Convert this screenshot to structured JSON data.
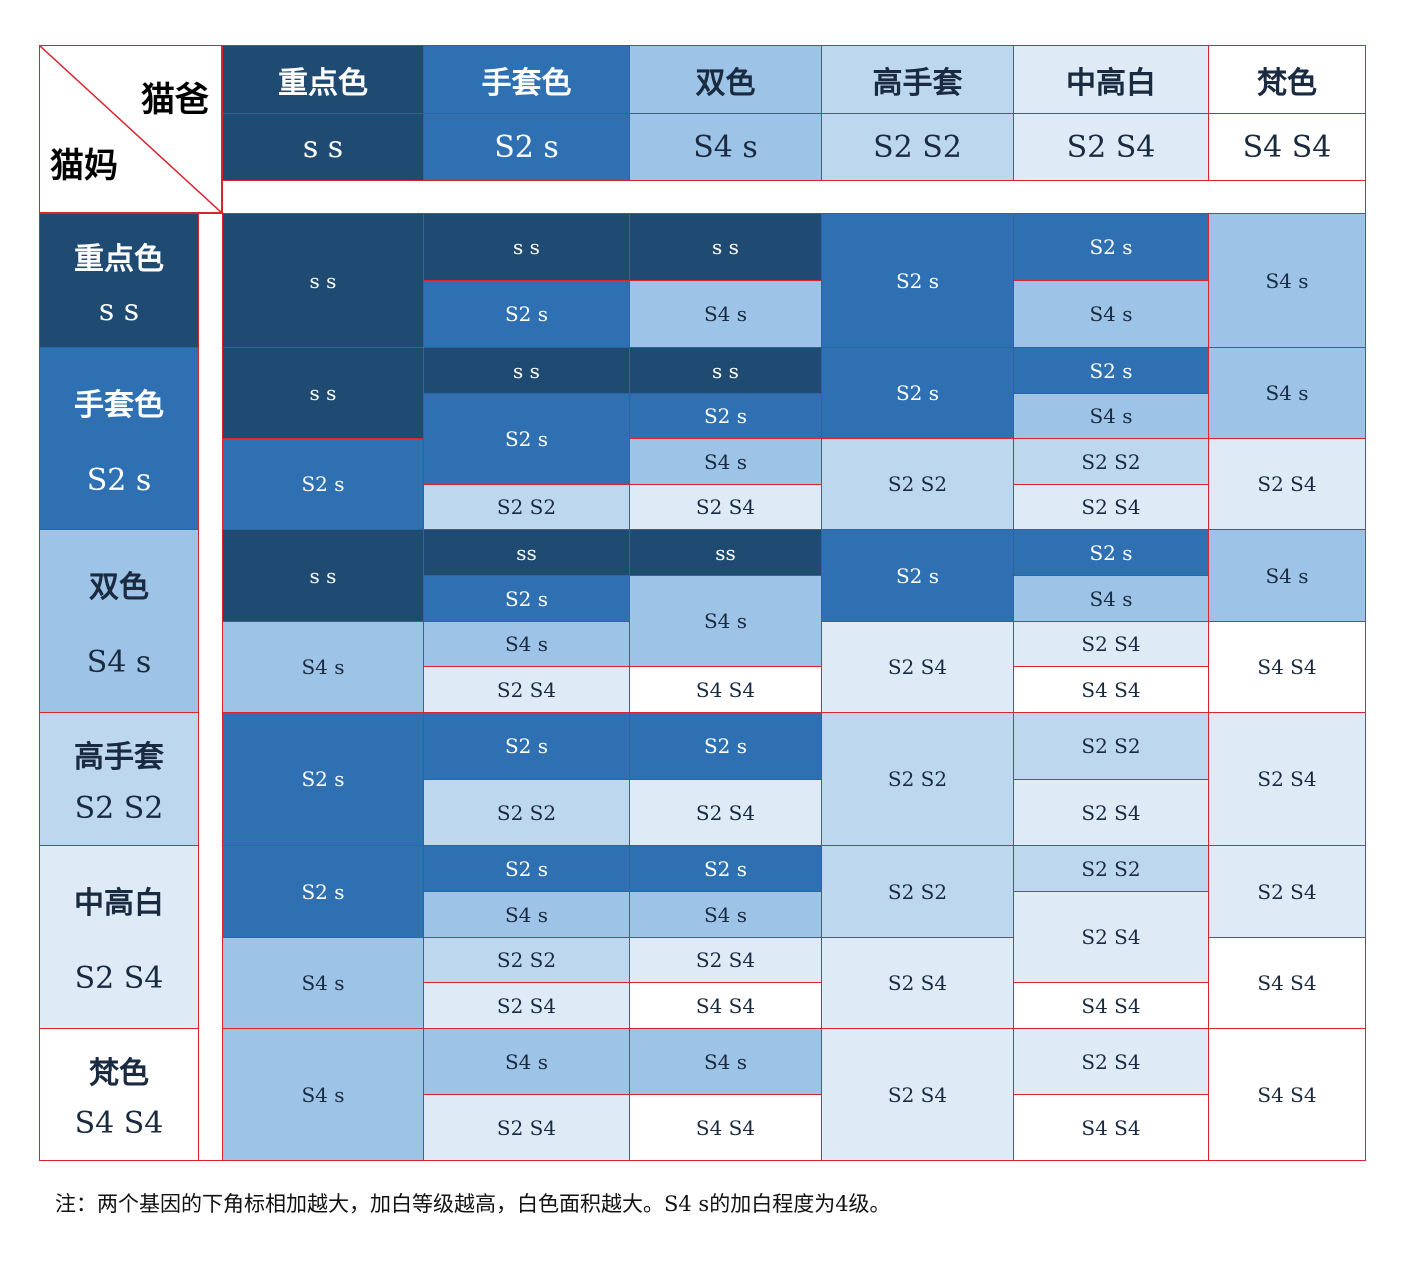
{
  "colors": {
    "ss": "#1f4b73",
    "S2s": "#2e70b2",
    "S4s": "#9dc3e6",
    "S2S2": "#bdd7ee",
    "S2S4": "#deebf7",
    "S4S4": "#ffffff",
    "border": "#d9232d",
    "dark_text": "#ffffff",
    "light_text": "#1a2a40"
  },
  "corner": {
    "dad_label": "猫爸",
    "mom_label": "猫妈"
  },
  "dad_columns": [
    {
      "name": "重点色",
      "genotype": "s s",
      "key": "ss"
    },
    {
      "name": "手套色",
      "genotype": "S2 s",
      "key": "S2s"
    },
    {
      "name": "双色",
      "genotype": "S4 s",
      "key": "S4s"
    },
    {
      "name": "高手套",
      "genotype": "S2 S2",
      "key": "S2S2"
    },
    {
      "name": "中高白",
      "genotype": "S2 S4",
      "key": "S2S4"
    },
    {
      "name": "梵色",
      "genotype": "S4 S4",
      "key": "S4S4"
    }
  ],
  "mom_rows": [
    {
      "name": "重点色",
      "genotype": "s s",
      "key": "ss"
    },
    {
      "name": "手套色",
      "genotype": "S2 s",
      "key": "S2s"
    },
    {
      "name": "双色",
      "genotype": "S4 s",
      "key": "S4s"
    },
    {
      "name": "高手套",
      "genotype": "S2 S2",
      "key": "S2S2"
    },
    {
      "name": "中高白",
      "genotype": "S2 S4",
      "key": "S2S4"
    },
    {
      "name": "梵色",
      "genotype": "S4 S4",
      "key": "S4S4"
    }
  ],
  "offspring": [
    {
      "row": 0,
      "col": 0,
      "part": [
        0,
        1
      ],
      "text": "s s",
      "key": "ss"
    },
    {
      "row": 0,
      "col": 1,
      "part": [
        0,
        0.5
      ],
      "text": "s s",
      "key": "ss"
    },
    {
      "row": 0,
      "col": 1,
      "part": [
        0.5,
        1
      ],
      "text": "S2 s",
      "key": "S2s"
    },
    {
      "row": 0,
      "col": 2,
      "part": [
        0,
        0.5
      ],
      "text": "s s",
      "key": "ss"
    },
    {
      "row": 0,
      "col": 2,
      "part": [
        0.5,
        1
      ],
      "text": "S4 s",
      "key": "S4s"
    },
    {
      "row": 0,
      "col": 3,
      "part": [
        0,
        1
      ],
      "text": "S2 s",
      "key": "S2s"
    },
    {
      "row": 0,
      "col": 4,
      "part": [
        0,
        0.5
      ],
      "text": "S2 s",
      "key": "S2s"
    },
    {
      "row": 0,
      "col": 4,
      "part": [
        0.5,
        1
      ],
      "text": "S4 s",
      "key": "S4s"
    },
    {
      "row": 0,
      "col": 5,
      "part": [
        0,
        1
      ],
      "text": "S4 s",
      "key": "S4s"
    },
    {
      "row": 1,
      "col": 0,
      "part": [
        0,
        0.5
      ],
      "text": "s s",
      "key": "ss"
    },
    {
      "row": 1,
      "col": 0,
      "part": [
        0.5,
        1
      ],
      "text": "S2 s",
      "key": "S2s"
    },
    {
      "row": 1,
      "col": 1,
      "part": [
        0,
        0.25
      ],
      "text": "s s",
      "key": "ss"
    },
    {
      "row": 1,
      "col": 1,
      "part": [
        0.25,
        0.75
      ],
      "text": "S2 s",
      "key": "S2s"
    },
    {
      "row": 1,
      "col": 1,
      "part": [
        0.75,
        1
      ],
      "text": "S2 S2",
      "key": "S2S2"
    },
    {
      "row": 1,
      "col": 2,
      "part": [
        0,
        0.25
      ],
      "text": "s s",
      "key": "ss"
    },
    {
      "row": 1,
      "col": 2,
      "part": [
        0.25,
        0.5
      ],
      "text": "S2 s",
      "key": "S2s"
    },
    {
      "row": 1,
      "col": 2,
      "part": [
        0.5,
        0.75
      ],
      "text": "S4 s",
      "key": "S4s"
    },
    {
      "row": 1,
      "col": 2,
      "part": [
        0.75,
        1
      ],
      "text": "S2 S4",
      "key": "S2S4"
    },
    {
      "row": 1,
      "col": 3,
      "part": [
        0,
        0.5
      ],
      "text": "S2 s",
      "key": "S2s"
    },
    {
      "row": 1,
      "col": 3,
      "part": [
        0.5,
        1
      ],
      "text": "S2 S2",
      "key": "S2S2"
    },
    {
      "row": 1,
      "col": 4,
      "part": [
        0,
        0.25
      ],
      "text": "S2 s",
      "key": "S2s"
    },
    {
      "row": 1,
      "col": 4,
      "part": [
        0.25,
        0.5
      ],
      "text": "S4 s",
      "key": "S4s"
    },
    {
      "row": 1,
      "col": 4,
      "part": [
        0.5,
        0.75
      ],
      "text": "S2 S2",
      "key": "S2S2"
    },
    {
      "row": 1,
      "col": 4,
      "part": [
        0.75,
        1
      ],
      "text": "S2 S4",
      "key": "S2S4"
    },
    {
      "row": 1,
      "col": 5,
      "part": [
        0,
        0.5
      ],
      "text": "S4 s",
      "key": "S4s"
    },
    {
      "row": 1,
      "col": 5,
      "part": [
        0.5,
        1
      ],
      "text": "S2 S4",
      "key": "S2S4"
    },
    {
      "row": 2,
      "col": 0,
      "part": [
        0,
        0.5
      ],
      "text": "s s",
      "key": "ss"
    },
    {
      "row": 2,
      "col": 0,
      "part": [
        0.5,
        1
      ],
      "text": "S4 s",
      "key": "S4s"
    },
    {
      "row": 2,
      "col": 1,
      "part": [
        0,
        0.25
      ],
      "text": "ss",
      "key": "ss"
    },
    {
      "row": 2,
      "col": 1,
      "part": [
        0.25,
        0.5
      ],
      "text": "S2 s",
      "key": "S2s"
    },
    {
      "row": 2,
      "col": 1,
      "part": [
        0.5,
        0.75
      ],
      "text": "S4 s",
      "key": "S4s"
    },
    {
      "row": 2,
      "col": 1,
      "part": [
        0.75,
        1
      ],
      "text": "S2 S4",
      "key": "S2S4"
    },
    {
      "row": 2,
      "col": 2,
      "part": [
        0,
        0.25
      ],
      "text": "ss",
      "key": "ss"
    },
    {
      "row": 2,
      "col": 2,
      "part": [
        0.25,
        0.75
      ],
      "text": "S4 s",
      "key": "S4s"
    },
    {
      "row": 2,
      "col": 2,
      "part": [
        0.75,
        1
      ],
      "text": "S4 S4",
      "key": "S4S4"
    },
    {
      "row": 2,
      "col": 3,
      "part": [
        0,
        0.5
      ],
      "text": "S2 s",
      "key": "S2s"
    },
    {
      "row": 2,
      "col": 3,
      "part": [
        0.5,
        1
      ],
      "text": "S2 S4",
      "key": "S2S4"
    },
    {
      "row": 2,
      "col": 4,
      "part": [
        0,
        0.25
      ],
      "text": "S2 s",
      "key": "S2s"
    },
    {
      "row": 2,
      "col": 4,
      "part": [
        0.25,
        0.5
      ],
      "text": "S4 s",
      "key": "S4s"
    },
    {
      "row": 2,
      "col": 4,
      "part": [
        0.5,
        0.75
      ],
      "text": "S2 S4",
      "key": "S2S4"
    },
    {
      "row": 2,
      "col": 4,
      "part": [
        0.75,
        1
      ],
      "text": "S4 S4",
      "key": "S4S4"
    },
    {
      "row": 2,
      "col": 5,
      "part": [
        0,
        0.5
      ],
      "text": "S4 s",
      "key": "S4s"
    },
    {
      "row": 2,
      "col": 5,
      "part": [
        0.5,
        1
      ],
      "text": "S4 S4",
      "key": "S4S4"
    },
    {
      "row": 3,
      "col": 0,
      "part": [
        0,
        1
      ],
      "text": "S2 s",
      "key": "S2s"
    },
    {
      "row": 3,
      "col": 1,
      "part": [
        0,
        0.5
      ],
      "text": "S2 s",
      "key": "S2s"
    },
    {
      "row": 3,
      "col": 1,
      "part": [
        0.5,
        1
      ],
      "text": "S2 S2",
      "key": "S2S2"
    },
    {
      "row": 3,
      "col": 2,
      "part": [
        0,
        0.5
      ],
      "text": "S2 s",
      "key": "S2s"
    },
    {
      "row": 3,
      "col": 2,
      "part": [
        0.5,
        1
      ],
      "text": "S2 S4",
      "key": "S2S4"
    },
    {
      "row": 3,
      "col": 3,
      "part": [
        0,
        1
      ],
      "text": "S2 S2",
      "key": "S2S2"
    },
    {
      "row": 3,
      "col": 4,
      "part": [
        0,
        0.5
      ],
      "text": "S2 S2",
      "key": "S2S2"
    },
    {
      "row": 3,
      "col": 4,
      "part": [
        0.5,
        1
      ],
      "text": "S2 S4",
      "key": "S2S4"
    },
    {
      "row": 3,
      "col": 5,
      "part": [
        0,
        1
      ],
      "text": "S2 S4",
      "key": "S2S4"
    },
    {
      "row": 4,
      "col": 0,
      "part": [
        0,
        0.5
      ],
      "text": "S2 s",
      "key": "S2s"
    },
    {
      "row": 4,
      "col": 0,
      "part": [
        0.5,
        1
      ],
      "text": "S4 s",
      "key": "S4s"
    },
    {
      "row": 4,
      "col": 1,
      "part": [
        0,
        0.25
      ],
      "text": "S2 s",
      "key": "S2s"
    },
    {
      "row": 4,
      "col": 1,
      "part": [
        0.25,
        0.5
      ],
      "text": "S4 s",
      "key": "S4s"
    },
    {
      "row": 4,
      "col": 1,
      "part": [
        0.5,
        0.75
      ],
      "text": "S2 S2",
      "key": "S2S2"
    },
    {
      "row": 4,
      "col": 1,
      "part": [
        0.75,
        1
      ],
      "text": "S2 S4",
      "key": "S2S4"
    },
    {
      "row": 4,
      "col": 2,
      "part": [
        0,
        0.25
      ],
      "text": "S2 s",
      "key": "S2s"
    },
    {
      "row": 4,
      "col": 2,
      "part": [
        0.25,
        0.5
      ],
      "text": "S4 s",
      "key": "S4s"
    },
    {
      "row": 4,
      "col": 2,
      "part": [
        0.5,
        0.75
      ],
      "text": "S2 S4",
      "key": "S2S4"
    },
    {
      "row": 4,
      "col": 2,
      "part": [
        0.75,
        1
      ],
      "text": "S4 S4",
      "key": "S4S4"
    },
    {
      "row": 4,
      "col": 3,
      "part": [
        0,
        0.5
      ],
      "text": "S2 S2",
      "key": "S2S2"
    },
    {
      "row": 4,
      "col": 3,
      "part": [
        0.5,
        1
      ],
      "text": "S2 S4",
      "key": "S2S4"
    },
    {
      "row": 4,
      "col": 4,
      "part": [
        0,
        0.25
      ],
      "text": "S2 S2",
      "key": "S2S2"
    },
    {
      "row": 4,
      "col": 4,
      "part": [
        0.25,
        0.75
      ],
      "text": "S2 S4",
      "key": "S2S4"
    },
    {
      "row": 4,
      "col": 4,
      "part": [
        0.75,
        1
      ],
      "text": "S4 S4",
      "key": "S4S4"
    },
    {
      "row": 4,
      "col": 5,
      "part": [
        0,
        0.5
      ],
      "text": "S2 S4",
      "key": "S2S4"
    },
    {
      "row": 4,
      "col": 5,
      "part": [
        0.5,
        1
      ],
      "text": "S4 S4",
      "key": "S4S4"
    },
    {
      "row": 5,
      "col": 0,
      "part": [
        0,
        1
      ],
      "text": "S4 s",
      "key": "S4s"
    },
    {
      "row": 5,
      "col": 1,
      "part": [
        0,
        0.5
      ],
      "text": "S4 s",
      "key": "S4s"
    },
    {
      "row": 5,
      "col": 1,
      "part": [
        0.5,
        1
      ],
      "text": "S2 S4",
      "key": "S2S4"
    },
    {
      "row": 5,
      "col": 2,
      "part": [
        0,
        0.5
      ],
      "text": "S4 s",
      "key": "S4s"
    },
    {
      "row": 5,
      "col": 2,
      "part": [
        0.5,
        1
      ],
      "text": "S4 S4",
      "key": "S4S4"
    },
    {
      "row": 5,
      "col": 3,
      "part": [
        0,
        1
      ],
      "text": "S2 S4",
      "key": "S2S4"
    },
    {
      "row": 5,
      "col": 4,
      "part": [
        0,
        0.5
      ],
      "text": "S2 S4",
      "key": "S2S4"
    },
    {
      "row": 5,
      "col": 4,
      "part": [
        0.5,
        1
      ],
      "text": "S4 S4",
      "key": "S4S4"
    },
    {
      "row": 5,
      "col": 5,
      "part": [
        0,
        1
      ],
      "text": "S4 S4",
      "key": "S4S4"
    }
  ],
  "note": "注：两个基因的下角标相加越大，加白等级越高，白色面积越大。S4 s的加白程度为4级。"
}
